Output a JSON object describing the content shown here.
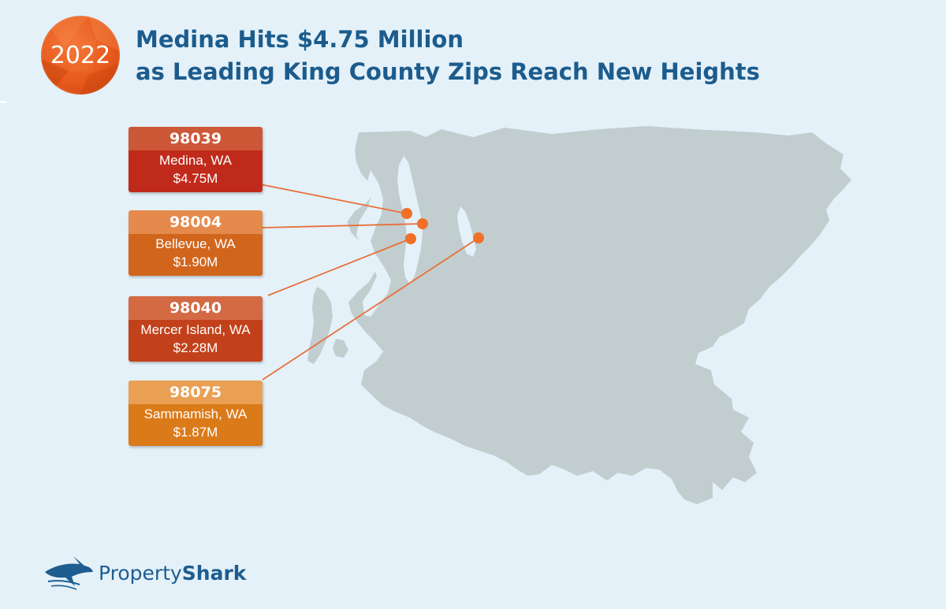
{
  "header": {
    "year": "2022",
    "title_line1": "Medina Hits $4.75 Million",
    "title_line2": "as Leading King County Zips Reach New Heights"
  },
  "labels": [
    {
      "zip": "98039",
      "city": "Medina, WA",
      "price": "$4.75M",
      "color_top": "#cc5838",
      "color_bottom": "#c02a1a"
    },
    {
      "zip": "98004",
      "city": "Bellevue, WA",
      "price": "$1.90M",
      "color_top": "#e58a4c",
      "color_bottom": "#d2651c"
    },
    {
      "zip": "98040",
      "city": "Mercer Island, WA",
      "price": "$2.28M",
      "color_top": "#d46a44",
      "color_bottom": "#c2411a"
    },
    {
      "zip": "98075",
      "city": "Sammamish, WA",
      "price": "$1.87M",
      "color_top": "#e9a055",
      "color_bottom": "#db7a19"
    }
  ],
  "colors": {
    "background": "#e4f1f9",
    "land": "#c2cdcf",
    "marker": "#f07028",
    "title": "#1c5c8d"
  },
  "logo": {
    "name_part1": "Property",
    "name_part2": "Shark"
  }
}
